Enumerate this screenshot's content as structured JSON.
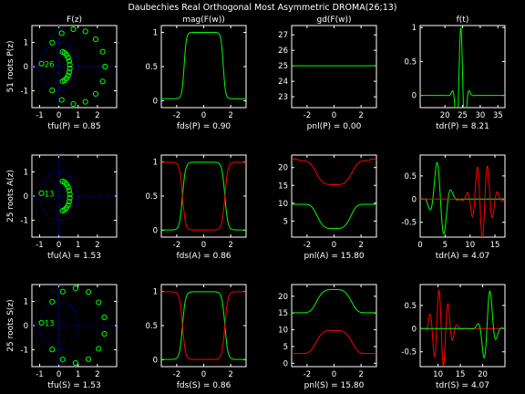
{
  "window": {
    "title": "Daubechies Real Orthogonal Most Asymmetric DROMA(26;13)"
  },
  "colors": {
    "background": "#000000",
    "axes": "#ffffff",
    "green": "#00ff00",
    "red": "#ff0000",
    "grid": "#0000ff"
  },
  "column_titles": [
    "F(z)",
    "mag(F(w))",
    "gd(F(w))",
    "f(t)"
  ],
  "row_labels": [
    "51 roots P(z)",
    "25 roots A(z)",
    "25 roots S(z)"
  ],
  "chart_data": [
    {
      "type": "scatter",
      "row": 0,
      "col": 0,
      "xlabel": "tfu(P) = 0.85",
      "xlim": [
        -1.4,
        3
      ],
      "ylim": [
        -1.7,
        1.7
      ],
      "xticks": [
        -1,
        0,
        1,
        2
      ],
      "yticks": [
        -1,
        0,
        1
      ],
      "annotation": "26",
      "series": [
        {
          "name": "roots",
          "color": "green",
          "shape": "P"
        }
      ]
    },
    {
      "type": "line",
      "row": 0,
      "col": 1,
      "xlabel": "fds(P) = 0.90",
      "xlim": [
        -3.14,
        3.14
      ],
      "ylim": [
        -0.1,
        1.1
      ],
      "xticks": [
        -2,
        0,
        2
      ],
      "yticks": [
        0,
        0.5,
        1
      ],
      "series": [
        {
          "name": "mag",
          "color": "green",
          "fn": "P"
        }
      ]
    },
    {
      "type": "line",
      "row": 0,
      "col": 2,
      "xlabel": "pnl(P) = 0.00",
      "xlim": [
        -3.14,
        3.14
      ],
      "ylim": [
        22.3,
        27.6
      ],
      "xticks": [
        -2,
        0,
        2
      ],
      "yticks": [
        23,
        24,
        25,
        26,
        27
      ],
      "series": [
        {
          "name": "gd",
          "color": "green",
          "fn": "const25"
        }
      ]
    },
    {
      "type": "line",
      "row": 0,
      "col": 3,
      "xlabel": "tdr(P) = 8.21",
      "xlim": [
        13,
        37
      ],
      "ylim": [
        -0.18,
        1.03
      ],
      "xticks": [
        20,
        25,
        30,
        35
      ],
      "yticks": [
        0,
        0.5,
        1
      ],
      "series": [
        {
          "name": "f",
          "color": "green",
          "fn": "fP"
        }
      ]
    },
    {
      "type": "scatter",
      "row": 1,
      "col": 0,
      "xlabel": "tfu(A) = 1.53",
      "xlim": [
        -1.4,
        3
      ],
      "ylim": [
        -1.7,
        1.7
      ],
      "xticks": [
        -1,
        0,
        1,
        2
      ],
      "yticks": [
        -1,
        0,
        1
      ],
      "annotation": "13",
      "series": [
        {
          "name": "roots",
          "color": "green",
          "shape": "A"
        }
      ]
    },
    {
      "type": "line",
      "row": 1,
      "col": 1,
      "xlabel": "fds(A) = 0.86",
      "xlim": [
        -3.14,
        3.14
      ],
      "ylim": [
        -0.1,
        1.1
      ],
      "xticks": [
        -2,
        0,
        2
      ],
      "yticks": [
        0,
        0.5,
        1
      ],
      "series": [
        {
          "name": "low",
          "color": "green",
          "fn": "low"
        },
        {
          "name": "high",
          "color": "red",
          "fn": "high"
        }
      ]
    },
    {
      "type": "line",
      "row": 1,
      "col": 2,
      "xlabel": "pnl(A) = 15.80",
      "xlim": [
        -3.14,
        3.14
      ],
      "ylim": [
        0.5,
        23.5
      ],
      "xticks": [
        -2,
        0,
        2
      ],
      "yticks": [
        5,
        10,
        15,
        20
      ],
      "series": [
        {
          "name": "gd-high",
          "color": "red",
          "fn": "gdTopDip"
        },
        {
          "name": "gd-low",
          "color": "green",
          "fn": "gdLowDip"
        }
      ]
    },
    {
      "type": "line",
      "row": 1,
      "col": 3,
      "xlabel": "tdr(A) = 4.07",
      "xlim": [
        0,
        17
      ],
      "ylim": [
        -0.82,
        0.95
      ],
      "xticks": [
        0,
        5,
        10,
        15
      ],
      "yticks": [
        -0.5,
        0,
        0.5
      ],
      "series": [
        {
          "name": "fg",
          "color": "green",
          "fn": "fAg"
        },
        {
          "name": "fr",
          "color": "red",
          "fn": "fAr"
        }
      ]
    },
    {
      "type": "scatter",
      "row": 2,
      "col": 0,
      "xlabel": "tfu(S) = 1.53",
      "xlim": [
        -1.4,
        3
      ],
      "ylim": [
        -1.7,
        1.7
      ],
      "xticks": [
        -1,
        0,
        1,
        2
      ],
      "yticks": [
        -1,
        0,
        1
      ],
      "annotation": "13",
      "series": [
        {
          "name": "roots",
          "color": "green",
          "shape": "S"
        }
      ]
    },
    {
      "type": "line",
      "row": 2,
      "col": 1,
      "xlabel": "fds(S) = 0.86",
      "xlim": [
        -3.14,
        3.14
      ],
      "ylim": [
        -0.1,
        1.1
      ],
      "xticks": [
        -2,
        0,
        2
      ],
      "yticks": [
        0,
        0.5,
        1
      ],
      "series": [
        {
          "name": "low",
          "color": "green",
          "fn": "low"
        },
        {
          "name": "high",
          "color": "red",
          "fn": "high"
        }
      ]
    },
    {
      "type": "line",
      "row": 2,
      "col": 2,
      "xlabel": "pnl(S) = 15.80",
      "xlim": [
        -3.14,
        3.14
      ],
      "ylim": [
        -1,
        23.5
      ],
      "xticks": [
        -2,
        0,
        2
      ],
      "yticks": [
        0,
        5,
        10,
        15,
        20
      ],
      "series": [
        {
          "name": "gd-high",
          "color": "green",
          "fn": "gdTopBump"
        },
        {
          "name": "gd-low",
          "color": "red",
          "fn": "gdLowBump"
        }
      ]
    },
    {
      "type": "line",
      "row": 2,
      "col": 3,
      "xlabel": "tdr(S) = 4.07",
      "xlim": [
        6,
        25
      ],
      "ylim": [
        -0.82,
        0.95
      ],
      "xticks": [
        10,
        15,
        20
      ],
      "yticks": [
        -0.5,
        0,
        0.5
      ],
      "series": [
        {
          "name": "fr",
          "color": "red",
          "fn": "fSr"
        },
        {
          "name": "fg",
          "color": "green",
          "fn": "fSg"
        }
      ]
    }
  ]
}
